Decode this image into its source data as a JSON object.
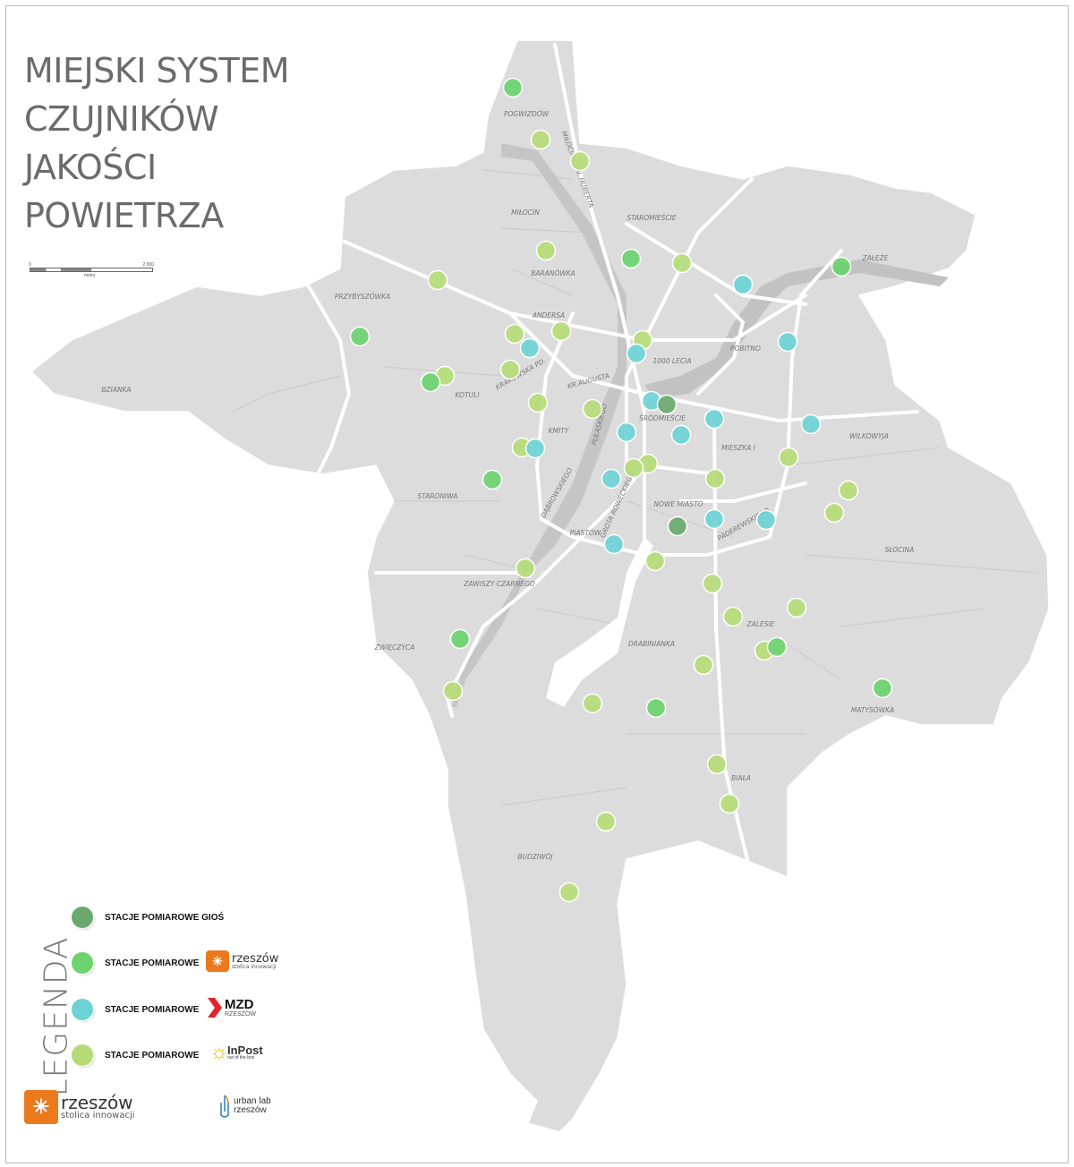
{
  "title_lines": [
    "MIEJSKI SYSTEM",
    "CZUJNIKÓW",
    "JAKOŚCI",
    "POWIETRZA"
  ],
  "scale": {
    "start": "0",
    "end": "2 000",
    "unit": "metry"
  },
  "districts": [
    "POGWIZDÓW",
    "MIŁOCIN",
    "STAROMIEŚCIE",
    "BARANÓWKA",
    "ZAŁĘŻE",
    "PRZYBYSZÓWKA",
    "ANDERSA",
    "POBITNO",
    "1000 LECIA",
    "BZIANKA",
    "KOTULI",
    "KRAKOWSKA PD.",
    "KR.AUGUSTA",
    "ŚRÓDMIEŚCIE",
    "KMITY",
    "MIESZKA I",
    "WILKOWYJA",
    "STARONIWA",
    "NOWE MIASTO",
    "PIASTÓW",
    "SŁOCINA",
    "ZAWISZY CZARNEGO",
    "ZALESIE",
    "ZWIĘCZYCA",
    "DRABINIANKA",
    "MATYSÓWKA",
    "BIAŁA",
    "BUDZIWÓJ"
  ],
  "streets": [
    "MIŁOCIN - ŚW. HUBERTA",
    "PUŁASKIEGO",
    "DĄBROWSKIEGO",
    "GROTA ROWECKIEGO",
    "PADEREWSKIEGO"
  ],
  "station_colors": {
    "gios": "#69a96d",
    "rzeszow": "#6cd36f",
    "mzd": "#6dd2d5",
    "inpost": "#b5db77"
  },
  "legend": {
    "title": "LEGENDA",
    "items": [
      {
        "type": "gios",
        "label": "STACJE POMIAROWE GIOŚ"
      },
      {
        "type": "rzeszow",
        "label": "STACJE POMIAROWE",
        "logo": "rzeszów stolica innowacji"
      },
      {
        "type": "mzd",
        "label": "STACJE POMIAROWE",
        "logo": "MZD RZESZÓW"
      },
      {
        "type": "inpost",
        "label": "STACJE POMIAROWE",
        "logo": "InPost out of the box"
      }
    ]
  },
  "logos": {
    "rzeszow_main": "rzeszów",
    "rzeszow_sub": "stolica innowacji",
    "mzd_main": "MZD",
    "mzd_sub": "RZESZÓW",
    "inpost_main": "InPost",
    "inpost_sub": "out of the box",
    "urbanlab_1": "urban lab",
    "urbanlab_2": "rzeszów"
  },
  "stations": {
    "gios": 2,
    "rzeszow": 10,
    "mzd": 14,
    "inpost": 32
  }
}
